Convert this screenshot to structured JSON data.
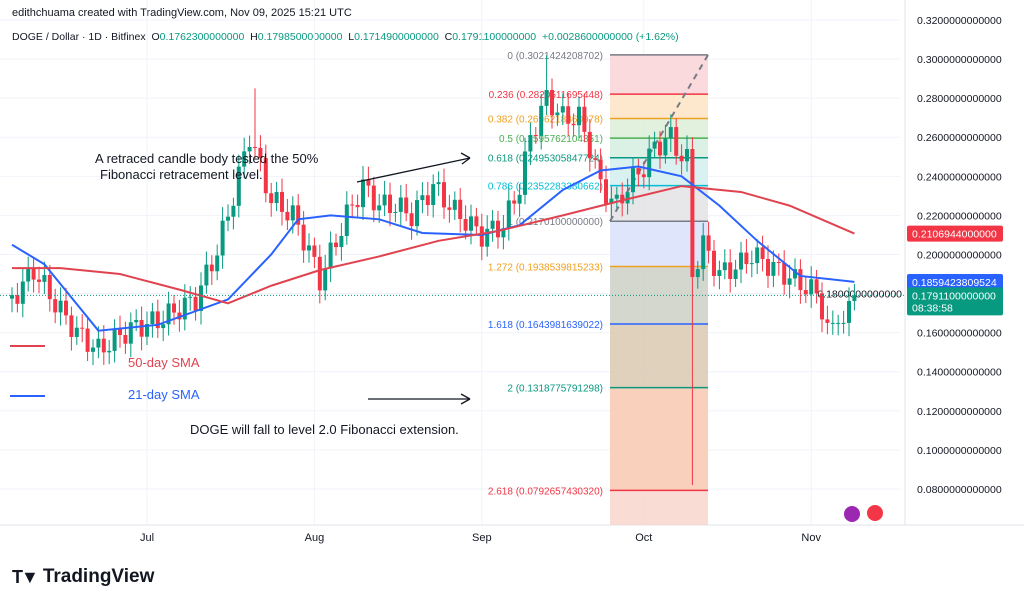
{
  "header": {
    "credit": "edithchuama created with TradingView.com, Nov 09, 2025 15:21 UTC"
  },
  "legend": {
    "symbol": "DOGE / Dollar · 1D · Bitfinex",
    "open_label": "O",
    "open": "0.1762300000000",
    "high_label": "H",
    "high": "0.1798500000000",
    "low_label": "L",
    "low": "0.1714900000000",
    "close_label": "C",
    "close": "0.1791100000000",
    "change": "+0.0028600000000 (+1.62%)"
  },
  "logo": {
    "text": "TradingView"
  },
  "colors": {
    "up": "#089981",
    "down": "#f23645",
    "sma21": "#2962ff",
    "sma50": "#e0434f"
  },
  "chart_data": {
    "type": "candlestick",
    "ylim": [
      0.06,
      0.33
    ],
    "y_ticks": [
      "0.3200000000000",
      "0.3000000000000",
      "0.2800000000000",
      "0.2600000000000",
      "0.2400000000000",
      "0.2200000000000",
      "0.2000000000000",
      "0.1800000000000",
      "0.1600000000000",
      "0.1400000000000",
      "0.1200000000000",
      "0.1000000000000",
      "0.0800000000000"
    ],
    "x_ticks": [
      {
        "label": "Jul",
        "date": "2025-07-01"
      },
      {
        "label": "Aug",
        "date": "2025-08-01"
      },
      {
        "label": "Sep",
        "date": "2025-09-01"
      },
      {
        "label": "Oct",
        "date": "2025-10-01"
      },
      {
        "label": "Nov",
        "date": "2025-11-01"
      }
    ],
    "close_path": [
      [
        "2025-06-06",
        0.177
      ],
      [
        "2025-06-10",
        0.192
      ],
      [
        "2025-06-14",
        0.175
      ],
      [
        "2025-06-18",
        0.16
      ],
      [
        "2025-06-22",
        0.151
      ],
      [
        "2025-06-28",
        0.162
      ],
      [
        "2025-07-03",
        0.166
      ],
      [
        "2025-07-10",
        0.177
      ],
      [
        "2025-07-14",
        0.202
      ],
      [
        "2025-07-17",
        0.23
      ],
      [
        "2025-07-20",
        0.261
      ],
      [
        "2025-07-24",
        0.228
      ],
      [
        "2025-07-28",
        0.22
      ],
      [
        "2025-07-31",
        0.202
      ],
      [
        "2025-08-02",
        0.187
      ],
      [
        "2025-08-07",
        0.22
      ],
      [
        "2025-08-10",
        0.235
      ],
      [
        "2025-08-13",
        0.225
      ],
      [
        "2025-08-16",
        0.225
      ],
      [
        "2025-08-19",
        0.22
      ],
      [
        "2025-08-23",
        0.235
      ],
      [
        "2025-08-27",
        0.222
      ],
      [
        "2025-09-01",
        0.21
      ],
      [
        "2025-09-05",
        0.215
      ],
      [
        "2025-09-08",
        0.235
      ],
      [
        "2025-09-10",
        0.26
      ],
      [
        "2025-09-13",
        0.28
      ],
      [
        "2025-09-16",
        0.27
      ],
      [
        "2025-09-19",
        0.27
      ],
      [
        "2025-09-21",
        0.255
      ],
      [
        "2025-09-23",
        0.235
      ],
      [
        "2025-09-26",
        0.225
      ],
      [
        "2025-09-28",
        0.235
      ],
      [
        "2025-10-01",
        0.245
      ],
      [
        "2025-10-03",
        0.255
      ],
      [
        "2025-10-06",
        0.26
      ],
      [
        "2025-10-08",
        0.25
      ],
      [
        "2025-10-09",
        0.248
      ],
      [
        "2025-10-10",
        0.19
      ],
      [
        "2025-10-12",
        0.205
      ],
      [
        "2025-10-15",
        0.19
      ],
      [
        "2025-10-19",
        0.195
      ],
      [
        "2025-10-21",
        0.2
      ],
      [
        "2025-10-24",
        0.195
      ],
      [
        "2025-10-27",
        0.19
      ],
      [
        "2025-10-30",
        0.185
      ],
      [
        "2025-11-02",
        0.18
      ],
      [
        "2025-11-04",
        0.165
      ],
      [
        "2025-11-07",
        0.165
      ],
      [
        "2025-11-08",
        0.1762
      ],
      [
        "2025-11-09",
        0.1791
      ]
    ],
    "extreme_wicks": [
      [
        "2025-07-21",
        0.285
      ],
      [
        "2025-09-13",
        0.302
      ],
      [
        "2025-10-10",
        0.082
      ]
    ],
    "series": [
      {
        "name": "21-day SMA",
        "points": [
          [
            "2025-06-06",
            0.205
          ],
          [
            "2025-06-12",
            0.195
          ],
          [
            "2025-06-22",
            0.161
          ],
          [
            "2025-07-03",
            0.164
          ],
          [
            "2025-07-16",
            0.177
          ],
          [
            "2025-07-24",
            0.2
          ],
          [
            "2025-07-29",
            0.218
          ],
          [
            "2025-08-04",
            0.22
          ],
          [
            "2025-08-13",
            0.218
          ],
          [
            "2025-08-21",
            0.211
          ],
          [
            "2025-09-01",
            0.21
          ],
          [
            "2025-09-08",
            0.215
          ],
          [
            "2025-09-16",
            0.233
          ],
          [
            "2025-09-23",
            0.243
          ],
          [
            "2025-09-30",
            0.245
          ],
          [
            "2025-10-08",
            0.24
          ],
          [
            "2025-10-15",
            0.225
          ],
          [
            "2025-10-22",
            0.207
          ],
          [
            "2025-10-30",
            0.189
          ],
          [
            "2025-11-09",
            0.186
          ]
        ]
      },
      {
        "name": "50-day SMA",
        "points": [
          [
            "2025-06-06",
            0.193
          ],
          [
            "2025-06-15",
            0.193
          ],
          [
            "2025-06-26",
            0.19
          ],
          [
            "2025-07-07",
            0.182
          ],
          [
            "2025-07-16",
            0.175
          ],
          [
            "2025-07-24",
            0.184
          ],
          [
            "2025-08-02",
            0.192
          ],
          [
            "2025-08-13",
            0.199
          ],
          [
            "2025-08-24",
            0.207
          ],
          [
            "2025-09-04",
            0.212
          ],
          [
            "2025-09-16",
            0.22
          ],
          [
            "2025-09-26",
            0.227
          ],
          [
            "2025-10-08",
            0.235
          ],
          [
            "2025-10-19",
            0.232
          ],
          [
            "2025-10-28",
            0.225
          ],
          [
            "2025-11-09",
            0.2107
          ]
        ]
      }
    ],
    "price_tags": [
      {
        "value": "0.2106944000000",
        "price": 0.2107,
        "color": "#f23645"
      },
      {
        "value": "0.1859423809524",
        "price": 0.1859,
        "color": "#2962ff"
      },
      {
        "value": "0.1791100000000",
        "price": 0.1791,
        "color": "#089981",
        "countdown": "08:38:58"
      }
    ],
    "fibonacci": {
      "levels": [
        {
          "label": "0 (0.3021424208702)",
          "price": 0.3021424208702,
          "color": "#787b86",
          "fill": "#fad4d7"
        },
        {
          "label": "0.236 (0.2820511695448)",
          "price": 0.2820511695448,
          "color": "#f23645",
          "fill": "#fde4c4"
        },
        {
          "label": "0.382 (0.2696218360978)",
          "price": 0.2696218360978,
          "color": "#f0a020",
          "fill": "#dcefd8"
        },
        {
          "label": "0.5 (0.2595762104351)",
          "price": 0.2595762104351,
          "color": "#4caf50",
          "fill": "#d5eee2"
        },
        {
          "label": "0.618 (0.2495305847724)",
          "price": 0.2495305847724,
          "color": "#089981",
          "fill": "#d4eef0"
        },
        {
          "label": "0.786 (0.2352283380662)",
          "price": 0.2352283380662,
          "color": "#00bcd4",
          "fill": "#e3e3e5"
        },
        {
          "label": "1 (0.2170100000000)",
          "price": 0.21701,
          "color": "#787b86",
          "fill": "#d9e2fb"
        },
        {
          "label": "1.272 (0.1938539815233)",
          "price": 0.1938539815233,
          "color": "#f0a020",
          "fill": "#cdd0c4"
        },
        {
          "label": "1.618 (0.1643981639022)",
          "price": 0.1643981639022,
          "color": "#2962ff",
          "fill": "#d9c9b0"
        },
        {
          "label": "2 (0.1318775791298)",
          "price": 0.1318775791298,
          "color": "#089981",
          "fill": "#f8c8b0"
        },
        {
          "label": "2.618 (0.0792657430320)",
          "price": 0.079265743032,
          "color": "#f23645",
          "fill": "#f8d6cc"
        }
      ]
    },
    "annotations": {
      "retrace": "A retraced candle body tested the 50% Fibonacci retracement level.",
      "sma50_label": "50-day SMA",
      "sma21_label": "21-day SMA",
      "forecast": "DOGE  will fall to level 2.0 Fibonacci extension."
    }
  }
}
